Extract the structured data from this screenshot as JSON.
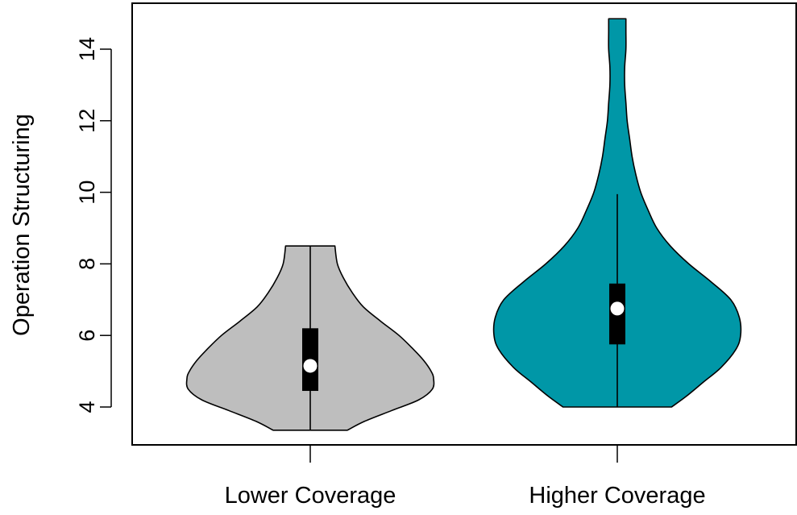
{
  "chart_data": {
    "type": "violin",
    "title": "",
    "xlabel": "",
    "ylabel": "Operation Structuring",
    "ylim": [
      3.0,
      15.4
    ],
    "y_ticks": [
      4,
      6,
      8,
      10,
      12,
      14
    ],
    "y_tick_labels": [
      "4",
      "6",
      "8",
      "10",
      "12",
      "14"
    ],
    "categories": [
      "Lower Coverage",
      "Higher Coverage"
    ],
    "grid": false,
    "legend": "none",
    "series": [
      {
        "category": "Lower Coverage",
        "color": "#bebebe",
        "min": 3.35,
        "q1": 4.45,
        "median": 5.15,
        "q3": 6.2,
        "max": 8.5,
        "whisker_low": 3.35,
        "whisker_high": 8.5,
        "density_profile": {
          "y": [
            3.35,
            3.6,
            3.9,
            4.2,
            4.5,
            4.8,
            5.0,
            5.3,
            5.6,
            6.0,
            6.4,
            6.8,
            7.2,
            7.6,
            8.0,
            8.5
          ],
          "half_width": [
            0.3,
            0.44,
            0.66,
            0.88,
            0.99,
            1.0,
            0.98,
            0.92,
            0.84,
            0.72,
            0.57,
            0.43,
            0.34,
            0.27,
            0.22,
            0.2
          ]
        }
      },
      {
        "category": "Higher Coverage",
        "color": "#0097a7",
        "min": 4.0,
        "q1": 5.75,
        "median": 6.75,
        "q3": 7.45,
        "max": 14.85,
        "whisker_low": 4.0,
        "whisker_high": 9.95,
        "density_profile": {
          "y": [
            4.0,
            4.3,
            4.7,
            5.1,
            5.6,
            6.0,
            6.5,
            7.0,
            7.5,
            8.0,
            8.5,
            9.0,
            9.5,
            10.0,
            10.5,
            11.0,
            11.5,
            12.0,
            12.5,
            13.0,
            13.5,
            14.0,
            14.5,
            14.85
          ],
          "half_width": [
            0.44,
            0.56,
            0.7,
            0.84,
            0.96,
            1.0,
            0.99,
            0.92,
            0.76,
            0.58,
            0.43,
            0.32,
            0.25,
            0.19,
            0.15,
            0.12,
            0.1,
            0.08,
            0.07,
            0.06,
            0.06,
            0.07,
            0.07,
            0.07
          ]
        }
      }
    ]
  }
}
